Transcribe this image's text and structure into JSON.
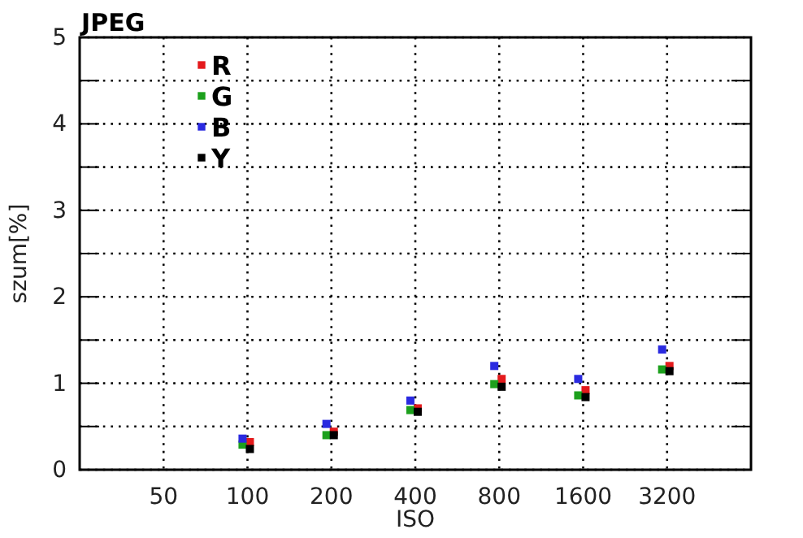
{
  "chart_data": {
    "type": "scatter",
    "title": "JPEG",
    "xlabel": "ISO",
    "ylabel": "szum[%]",
    "log": "x",
    "xlim": [
      25,
      6400
    ],
    "xticks": [
      50,
      100,
      200,
      400,
      800,
      1600,
      3200
    ],
    "ylim": [
      0,
      5
    ],
    "yticks": [
      0,
      {
        "value": 0.5,
        "label": null
      },
      1,
      {
        "value": 1.5,
        "label": null
      },
      2,
      {
        "value": 2.5,
        "label": null
      },
      3,
      {
        "value": 3.5,
        "label": null
      },
      4,
      {
        "value": 4.5,
        "label": null
      },
      5
    ],
    "grid": true,
    "legend": "top left",
    "marker": "square",
    "series": [
      {
        "name": "R",
        "color": "#e41a1c",
        "x": [
          102,
          204,
          408,
          816,
          1632,
          3264
        ],
        "values": [
          0.32,
          0.44,
          0.71,
          1.05,
          0.92,
          1.2
        ]
      },
      {
        "name": "G",
        "color": "#1ca01c",
        "x": [
          96,
          192,
          384,
          768,
          1536,
          3072
        ],
        "values": [
          0.29,
          0.4,
          0.69,
          0.99,
          0.86,
          1.16
        ]
      },
      {
        "name": "B",
        "color": "#2a2ae0",
        "x": [
          96,
          192,
          384,
          768,
          1536,
          3072
        ],
        "values": [
          0.36,
          0.53,
          0.8,
          1.2,
          1.05,
          1.39
        ]
      },
      {
        "name": "Y",
        "color": "#000000",
        "x": [
          102,
          204,
          408,
          816,
          1632,
          3264
        ],
        "values": [
          0.24,
          0.4,
          0.67,
          0.96,
          0.84,
          1.14
        ]
      }
    ]
  }
}
